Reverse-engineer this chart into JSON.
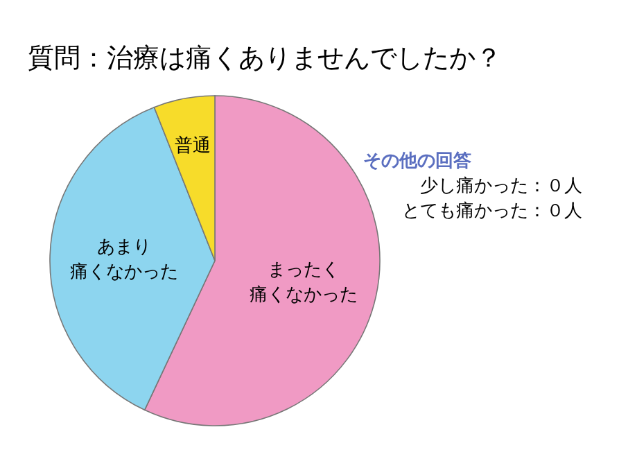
{
  "chart_data": {
    "type": "pie",
    "title": "質問：治療は痛くありませんでしたか？",
    "categories": [
      "まったく痛くなかった",
      "あまり痛くなかった",
      "普通"
    ],
    "values": [
      57,
      37,
      6
    ],
    "colors": [
      "#f09ac4",
      "#8dd5ef",
      "#f7dc2a"
    ],
    "annotations": [
      "その他の回答",
      "少し痛かった：０人",
      "とても痛かった：０人"
    ]
  }
}
